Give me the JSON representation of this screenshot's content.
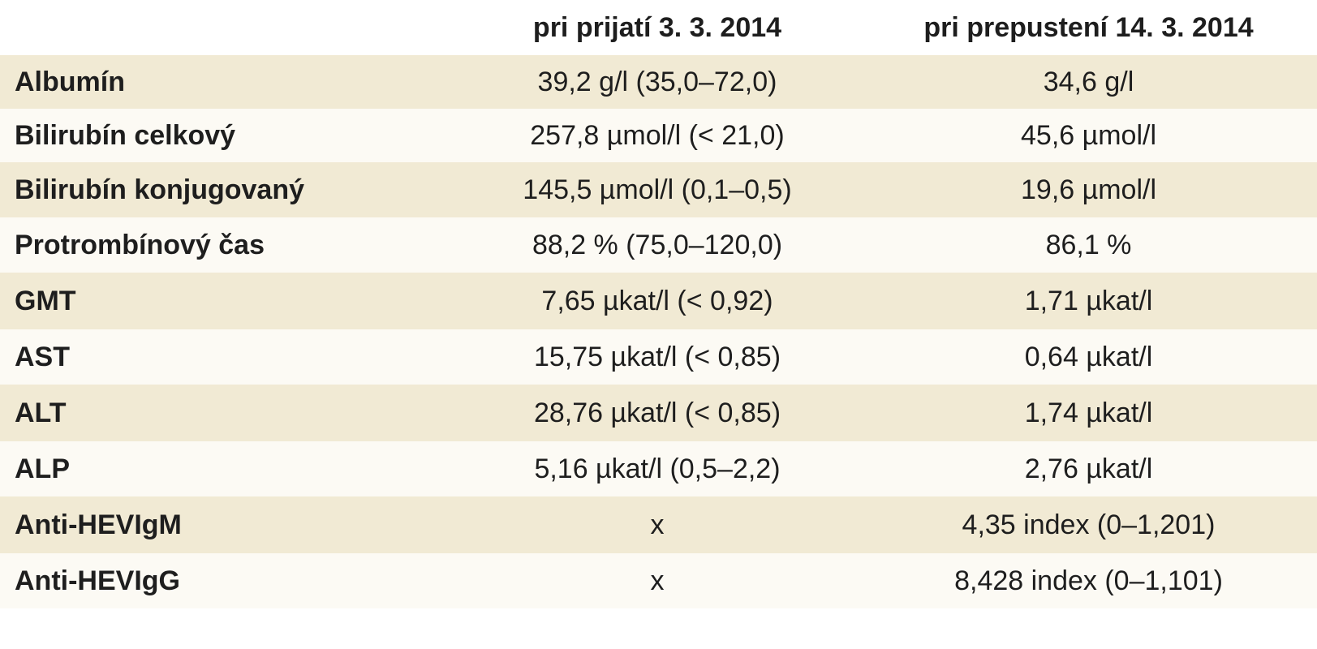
{
  "table": {
    "headers": [
      "",
      "pri prijatí 3. 3. 2014",
      "pri prepustení 14. 3. 2014"
    ],
    "rows": [
      {
        "label": "Albumín",
        "admission": "39,2 g/l (35,0–72,0)",
        "discharge": "34,6 g/l"
      },
      {
        "label": "Bilirubín celkový",
        "admission": "257,8 µmol/l (< 21,0)",
        "discharge": "45,6 µmol/l"
      },
      {
        "label": "Bilirubín konjugovaný",
        "admission": "145,5 µmol/l (0,1–0,5)",
        "discharge": "19,6 µmol/l"
      },
      {
        "label": "Protrombínový čas",
        "admission": "88,2 % (75,0–120,0)",
        "discharge": "86,1 %"
      },
      {
        "label": "GMT",
        "admission": "7,65 µkat/l (< 0,92)",
        "discharge": "1,71 µkat/l"
      },
      {
        "label": "AST",
        "admission": "15,75 µkat/l (< 0,85)",
        "discharge": "0,64 µkat/l"
      },
      {
        "label": "ALT",
        "admission": "28,76 µkat/l (< 0,85)",
        "discharge": "1,74 µkat/l"
      },
      {
        "label": "ALP",
        "admission": "5,16 µkat/l (0,5–2,2)",
        "discharge": "2,76 µkat/l"
      },
      {
        "label": "Anti-HEVIgM",
        "admission": "x",
        "discharge": "4,35 index (0–1,201)"
      },
      {
        "label": "Anti-HEVIgG",
        "admission": "x",
        "discharge": "8,428 index (0–1,101)"
      }
    ]
  }
}
